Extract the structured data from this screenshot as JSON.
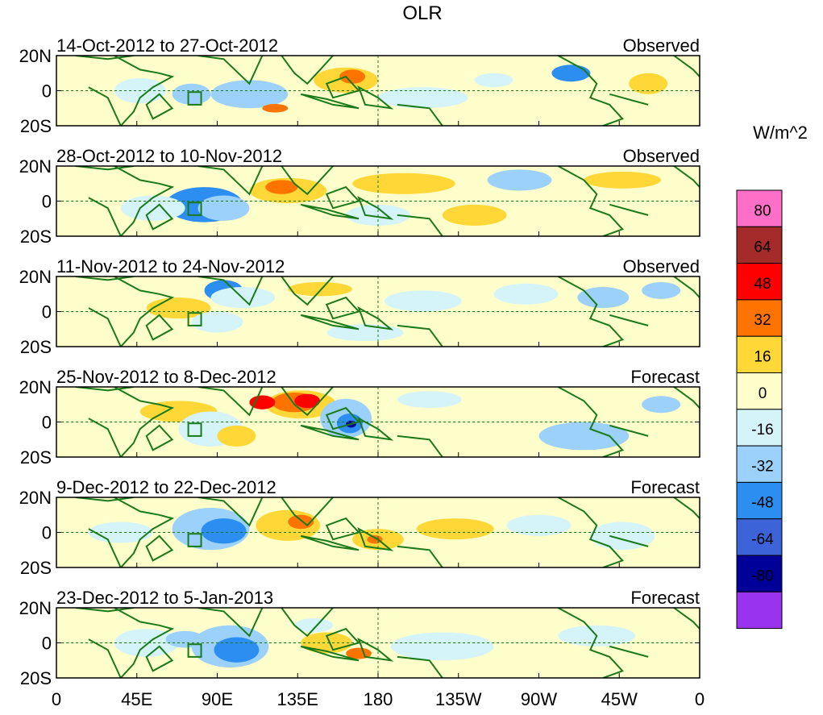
{
  "title": "OLR",
  "units": "W/m^2",
  "lat_labels": [
    "20N",
    "0",
    "20S"
  ],
  "lon_labels": [
    "0",
    "45E",
    "90E",
    "135E",
    "180",
    "135W",
    "90W",
    "45W",
    "0"
  ],
  "panels": [
    {
      "period": "14-Oct-2012 to 27-Oct-2012",
      "kind": "Observed"
    },
    {
      "period": "28-Oct-2012 to 10-Nov-2012",
      "kind": "Observed"
    },
    {
      "period": "11-Nov-2012 to 24-Nov-2012",
      "kind": "Observed"
    },
    {
      "period": "25-Nov-2012 to 8-Dec-2012",
      "kind": "Forecast"
    },
    {
      "period": "9-Dec-2012 to 22-Dec-2012",
      "kind": "Forecast"
    },
    {
      "period": "23-Dec-2012 to 5-Jan-2013",
      "kind": "Forecast"
    }
  ],
  "colorbar": {
    "labels": [
      "80",
      "64",
      "48",
      "32",
      "16",
      "0",
      "-16",
      "-32",
      "-48",
      "-64",
      "-80"
    ],
    "colors": [
      "#ff6ec7",
      "#a52a2a",
      "#ff0000",
      "#ff7400",
      "#ffd737",
      "#ffffcc",
      "#d4f4fa",
      "#9bd1fa",
      "#2c8ef0",
      "#3d63d9",
      "#000099",
      "#9933ee"
    ]
  },
  "colors": {
    "coast": "#1a7a1a",
    "frame": "#000000",
    "grid": "#1a7a1a"
  }
}
